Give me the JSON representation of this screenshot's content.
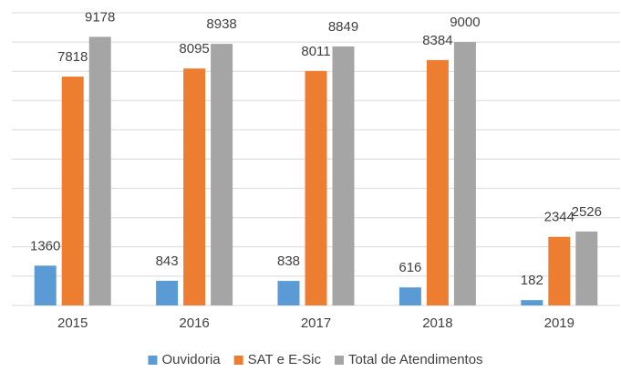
{
  "chart_data": {
    "type": "bar",
    "categories": [
      "2015",
      "2016",
      "2017",
      "2018",
      "2019"
    ],
    "series": [
      {
        "name": "Ouvidoria",
        "color": "#5b9bd5",
        "values": [
          1360,
          843,
          838,
          616,
          182
        ]
      },
      {
        "name": "SAT e E-Sic",
        "color": "#ed7d31",
        "values": [
          7818,
          8095,
          8011,
          8384,
          2344
        ]
      },
      {
        "name": "Total de Atendimentos",
        "color": "#a5a5a5",
        "values": [
          9178,
          8938,
          8849,
          9000,
          2526
        ]
      }
    ],
    "ylim": [
      0,
      10000
    ],
    "yticks": [
      0,
      1000,
      2000,
      3000,
      4000,
      5000,
      6000,
      7000,
      8000,
      9000,
      10000
    ],
    "grid": true,
    "legend": "bottom"
  }
}
